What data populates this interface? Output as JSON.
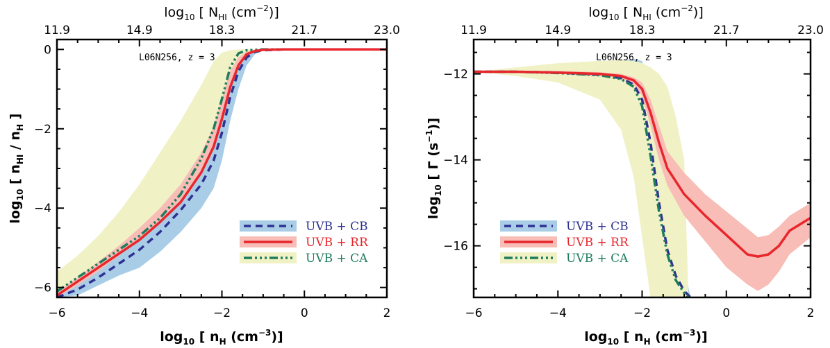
{
  "colors": {
    "cb_line": "#2e3192",
    "cb_band": "#a9cde6",
    "rr_line": "#e8262c",
    "rr_band": "#f7bdb6",
    "ca_line": "#1e7d5c",
    "ca_band": "#f0f1c4"
  },
  "chart_data": [
    {
      "type": "line",
      "title": "L06N256,  z = 3",
      "xlabel": {
        "pre": "log",
        "sub": "10",
        "mid": " [ n",
        "sub2": "H",
        "post": " (cm",
        "sup": "−3",
        "end": ")]"
      },
      "ylabel": {
        "pre": "log",
        "sub": "10",
        "mid": " [ n",
        "sub2": "HI",
        "mid2": " / n",
        "sub3": "H",
        "end": " ]"
      },
      "top_label": {
        "pre": "log",
        "sub": "10",
        "mid": " [ N",
        "sub2": "HI",
        "post": " (cm",
        "sup": "−2",
        "end": ")]"
      },
      "xlim": [
        -6,
        2
      ],
      "ylim": [
        -6.25,
        0.25
      ],
      "x_ticks": [
        "−6",
        "−4",
        "−2",
        "0",
        "2"
      ],
      "y_ticks": [
        "−6",
        "−4",
        "−2",
        "0"
      ],
      "top_ticks": [
        "11.9",
        "14.9",
        "18.3",
        "21.7",
        "23.0"
      ],
      "legend_position": "lower-right",
      "series": [
        {
          "name": "UVB + CB",
          "x": [
            -6,
            -5.5,
            -5,
            -4.5,
            -4,
            -3.5,
            -3,
            -2.5,
            -2.2,
            -2,
            -1.8,
            -1.6,
            -1.4,
            -1.2,
            -1,
            -0.5,
            0,
            1,
            2
          ],
          "values": [
            -6.4,
            -6.05,
            -5.75,
            -5.4,
            -5.05,
            -4.6,
            -4.05,
            -3.4,
            -2.8,
            -2.1,
            -1.2,
            -0.55,
            -0.2,
            -0.06,
            -0.02,
            0,
            0,
            0,
            0
          ],
          "band_upper": [
            -6.3,
            -5.95,
            -5.6,
            -5.2,
            -4.8,
            -4.3,
            -3.8,
            -3.1,
            -2.5,
            -1.8,
            -0.9,
            -0.4,
            -0.12,
            -0.03,
            0,
            0,
            0,
            0,
            0
          ],
          "band_lower": [
            -6.5,
            -6.2,
            -5.95,
            -5.7,
            -5.5,
            -5.1,
            -4.6,
            -4.0,
            -3.5,
            -2.8,
            -1.8,
            -1.0,
            -0.4,
            -0.12,
            -0.03,
            0,
            0,
            0,
            0
          ]
        },
        {
          "name": "UVB + RR",
          "x": [
            -6,
            -5.5,
            -5,
            -4.5,
            -4,
            -3.5,
            -3,
            -2.5,
            -2.2,
            -2,
            -1.8,
            -1.6,
            -1.4,
            -1.2,
            -1,
            -0.5,
            0,
            1,
            2
          ],
          "values": [
            -6.2,
            -5.85,
            -5.5,
            -5.15,
            -4.8,
            -4.35,
            -3.85,
            -3.1,
            -2.45,
            -1.75,
            -0.95,
            -0.4,
            -0.12,
            -0.04,
            -0.01,
            0,
            0,
            0,
            0
          ],
          "band_upper": [
            -6.1,
            -5.75,
            -5.35,
            -4.95,
            -4.5,
            -4.0,
            -3.4,
            -2.6,
            -1.95,
            -1.25,
            -0.55,
            -0.2,
            -0.05,
            -0.01,
            0,
            0,
            0,
            0,
            0
          ],
          "band_lower": [
            -6.3,
            -5.95,
            -5.65,
            -5.3,
            -5.0,
            -4.6,
            -4.1,
            -3.4,
            -2.8,
            -2.05,
            -1.2,
            -0.55,
            -0.2,
            -0.06,
            -0.01,
            0,
            0,
            0,
            0
          ]
        },
        {
          "name": "UVB + CA",
          "x": [
            -6,
            -5.5,
            -5,
            -4.5,
            -4,
            -3.5,
            -3,
            -2.5,
            -2.2,
            -2,
            -1.8,
            -1.6,
            -1.4,
            -1.2,
            -1,
            -0.5,
            0,
            1,
            2
          ],
          "values": [
            -6.1,
            -5.75,
            -5.4,
            -5.05,
            -4.7,
            -4.25,
            -3.65,
            -2.75,
            -2.0,
            -1.25,
            -0.45,
            -0.1,
            -0.02,
            -0.01,
            0,
            0,
            0,
            0,
            0
          ],
          "band_upper": [
            -5.6,
            -5.2,
            -4.7,
            -4.1,
            -3.4,
            -2.6,
            -1.8,
            -0.9,
            -0.3,
            -0.08,
            -0.02,
            0,
            0,
            0,
            0,
            0,
            0,
            0,
            0
          ],
          "band_lower": [
            -6.45,
            -6.1,
            -5.85,
            -5.55,
            -5.2,
            -4.75,
            -4.2,
            -3.5,
            -2.9,
            -2.2,
            -1.3,
            -0.6,
            -0.2,
            -0.05,
            -0.01,
            0,
            0,
            0,
            0
          ]
        }
      ]
    },
    {
      "type": "line",
      "title": "L06N256,  z = 3",
      "xlabel": {
        "pre": "log",
        "sub": "10",
        "mid": " [ n",
        "sub2": "H",
        "post": " (cm",
        "sup": "−3",
        "end": ")]"
      },
      "ylabel": {
        "pre": "log",
        "sub": "10",
        "mid": " [ Γ (s",
        "sup": "−1",
        "end": ")]"
      },
      "top_label": {
        "pre": "log",
        "sub": "10",
        "mid": " [ N",
        "sub2": "HI",
        "post": " (cm",
        "sup": "−2",
        "end": ")]"
      },
      "xlim": [
        -6,
        2
      ],
      "ylim": [
        -17.2,
        -11.2
      ],
      "x_ticks": [
        "−6",
        "−4",
        "−2",
        "0",
        "2"
      ],
      "y_ticks": [
        "−12",
        "−14",
        "−16"
      ],
      "top_ticks": [
        "11.9",
        "14.9",
        "18.3",
        "21.7",
        "23.0"
      ],
      "legend_position": "lower-left",
      "series": [
        {
          "name": "UVB + CB",
          "x": [
            -6,
            -5,
            -4,
            -3,
            -2.5,
            -2.2,
            -2.0,
            -1.8,
            -1.6,
            -1.4,
            -1.2,
            -1.0,
            -0.85
          ],
          "values": [
            -11.95,
            -11.95,
            -11.97,
            -12.02,
            -12.1,
            -12.25,
            -12.6,
            -13.6,
            -15.0,
            -16.1,
            -16.7,
            -17.05,
            -17.25
          ],
          "band_upper": [
            -11.95,
            -11.95,
            -11.9,
            -11.8,
            -11.7,
            -11.65,
            -11.7,
            -12.5,
            -13.5,
            -14.5,
            -15.5,
            -16.5,
            -17.2
          ],
          "band_lower": [
            -11.95,
            -11.95,
            -12.0,
            -12.05,
            -12.15,
            -12.3,
            -12.7,
            -13.8,
            -15.2,
            -16.3,
            -16.9,
            -17.2,
            -17.2
          ]
        },
        {
          "name": "UVB + RR",
          "x": [
            -6,
            -5,
            -4,
            -3,
            -2.5,
            -2.2,
            -2.0,
            -1.8,
            -1.6,
            -1.4,
            -1.0,
            -0.5,
            0,
            0.5,
            0.75,
            1.0,
            1.25,
            1.5,
            2.0
          ],
          "values": [
            -11.95,
            -11.95,
            -11.97,
            -12.0,
            -12.05,
            -12.15,
            -12.35,
            -12.9,
            -13.6,
            -14.2,
            -14.8,
            -15.3,
            -15.75,
            -16.2,
            -16.25,
            -16.2,
            -16.0,
            -15.65,
            -15.35
          ],
          "band_upper": [
            -11.95,
            -11.93,
            -11.93,
            -11.96,
            -12.0,
            -12.08,
            -12.2,
            -12.6,
            -13.2,
            -13.8,
            -14.3,
            -14.8,
            -15.2,
            -15.6,
            -15.8,
            -15.75,
            -15.55,
            -15.3,
            -15.0
          ],
          "band_lower": [
            -11.95,
            -11.97,
            -12.0,
            -12.05,
            -12.1,
            -12.25,
            -12.5,
            -13.2,
            -14.0,
            -14.6,
            -15.3,
            -15.9,
            -16.5,
            -16.9,
            -17.05,
            -16.9,
            -16.6,
            -16.2,
            -15.8
          ]
        },
        {
          "name": "UVB + CA",
          "x": [
            -6,
            -5,
            -4,
            -3,
            -2.5,
            -2.2,
            -2.0,
            -1.8,
            -1.6,
            -1.4,
            -1.2,
            -1.0,
            -0.9
          ],
          "values": [
            -11.95,
            -11.95,
            -11.98,
            -12.03,
            -12.12,
            -12.3,
            -12.75,
            -13.9,
            -15.2,
            -16.2,
            -16.8,
            -17.1,
            -17.25
          ],
          "band_upper": [
            -11.95,
            -11.85,
            -11.75,
            -11.7,
            -11.68,
            -11.7,
            -11.75,
            -11.85,
            -12.0,
            -12.3,
            -13.0,
            -14.0,
            -17.2
          ],
          "band_lower": [
            -11.95,
            -12.05,
            -12.2,
            -12.6,
            -13.3,
            -14.4,
            -15.8,
            -17.2,
            -17.2,
            -17.2,
            -17.2,
            -17.2,
            -17.2
          ]
        }
      ]
    }
  ]
}
